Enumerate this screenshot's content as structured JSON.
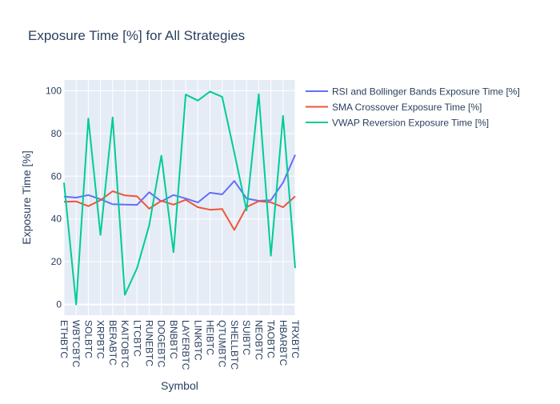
{
  "chart_data": {
    "type": "line",
    "title": "Exposure Time [%] for All Strategies",
    "xlabel": "Symbol",
    "ylabel": "Exposure Time [%]",
    "ylim": [
      -5,
      105
    ],
    "yticks": [
      0,
      20,
      40,
      60,
      80,
      100
    ],
    "grid": true,
    "legend_position": "right",
    "categories": [
      "ETHBTC",
      "WBTCBTC",
      "SOLBTC",
      "XRPBTC",
      "BERABTC",
      "KAITOBTC",
      "LTCBTC",
      "RUNEBTC",
      "DOGEBTC",
      "BNBBTC",
      "LAYERBTC",
      "LINKBTC",
      "HEIBTC",
      "QTUMBTC",
      "SHELLBTC",
      "SUIBTC",
      "NEOBTC",
      "TAOBTC",
      "HBARBTC",
      "TRXBTC"
    ],
    "series": [
      {
        "name": "RSI and Bollinger Bands Exposure Time [%]",
        "color": "#636efa",
        "values": [
          50.5,
          50.0,
          51.2,
          49.2,
          46.9,
          46.7,
          46.6,
          52.5,
          48.2,
          51.2,
          49.6,
          47.7,
          52.3,
          51.5,
          57.8,
          49.6,
          48.5,
          48.8,
          57.0,
          70.0
        ]
      },
      {
        "name": "SMA Crossover Exposure Time [%]",
        "color": "#ef553b",
        "values": [
          48.0,
          48.2,
          46.0,
          48.8,
          53.0,
          51.0,
          50.6,
          44.8,
          48.5,
          46.7,
          49.0,
          45.5,
          44.3,
          44.7,
          34.9,
          45.6,
          48.3,
          47.8,
          45.5,
          50.6
        ]
      },
      {
        "name": "VWAP Reversion Exposure Time [%]",
        "color": "#00cc96",
        "values": [
          57.0,
          0.0,
          87.0,
          32.5,
          87.5,
          4.5,
          17.0,
          37.0,
          69.6,
          24.5,
          98.2,
          95.4,
          99.6,
          97.1,
          71.0,
          44.0,
          98.4,
          22.8,
          88.2,
          17.0
        ]
      }
    ]
  }
}
